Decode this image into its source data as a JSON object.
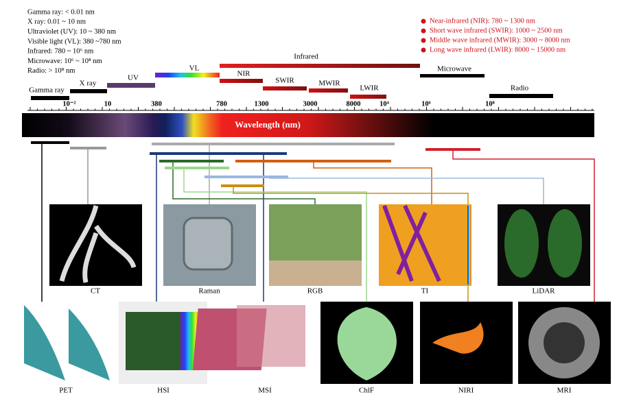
{
  "left_legend": [
    "Gamma ray: < 0.01 nm",
    "X ray: 0.01 ~ 10 nm",
    "Ultraviolet (UV): 10 ~ 380 nm",
    "Visible light (VL): 380 ~780 nm",
    "Infrared: 780 ~ 10⁶ nm",
    "Microwave: 10⁶ ~ 10⁸ nm",
    "Radio: > 10⁸ nm"
  ],
  "right_legend": [
    "Near-infrared (NIR): 780 ~ 1300 nm",
    "Short wave infrared (SWIR): 1000 ~ 2500 nm",
    "Middle wave infrared (MWIR): 3000 ~ 8000 nm",
    "Long wave infrared (LWIR): 8000 ~ 15000 nm"
  ],
  "bands": [
    "Gamma ray",
    "X ray",
    "UV",
    "VL",
    "Infrared",
    "NIR",
    "SWIR",
    "MWIR",
    "LWIR",
    "Microwave",
    "Radio"
  ],
  "scale_ticks": [
    "10⁻²",
    "10",
    "380",
    "780",
    "1300",
    "3000",
    "8000",
    "10⁴",
    "10⁶",
    "10⁸"
  ],
  "axis_label": "Wavelength (nm)",
  "sensors_top": [
    "CT",
    "Raman",
    "RGB",
    "TI",
    "LiDAR"
  ],
  "sensors_bottom": [
    "PET",
    "HSI",
    "MSI",
    "ChlF",
    "NIRI",
    "MRI"
  ]
}
